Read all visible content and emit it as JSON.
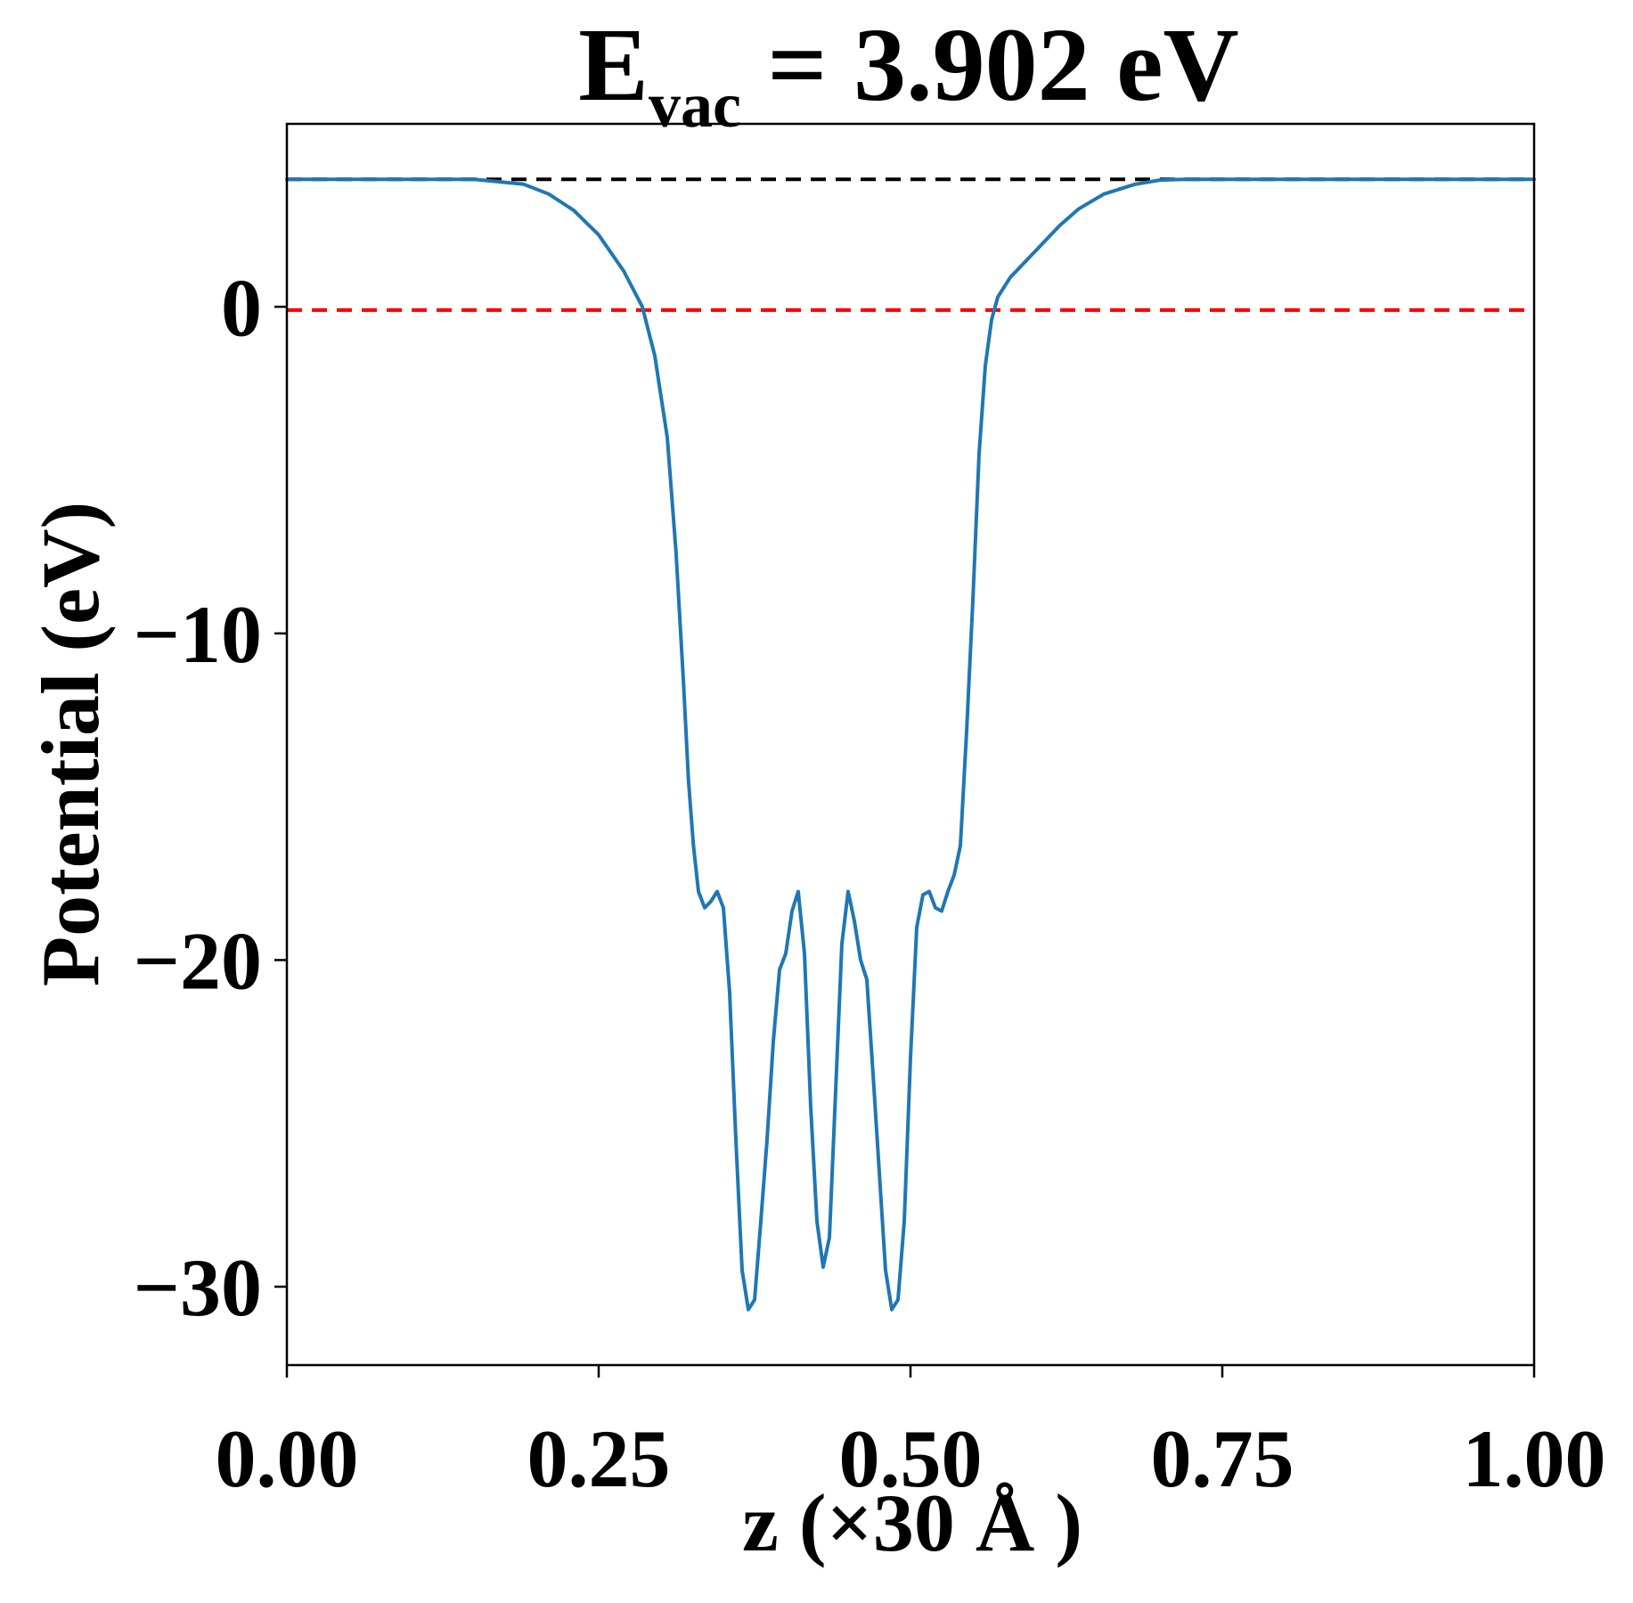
{
  "chart_data": {
    "type": "line",
    "title": {
      "main": "E",
      "subscript": "vac",
      "rest": " = 3.902 eV"
    },
    "xlabel": "z (×30 Å )",
    "ylabel": "Potential (eV)",
    "xlim": [
      0.0,
      1.0
    ],
    "ylim": [
      -32.4,
      5.6
    ],
    "x_ticks": [
      0.0,
      0.25,
      0.5,
      0.75,
      1.0
    ],
    "x_tick_labels": [
      "0.00",
      "0.25",
      "0.50",
      "0.75",
      "1.00"
    ],
    "y_ticks": [
      0,
      -10,
      -20,
      -30
    ],
    "y_tick_labels": [
      "0",
      "−10",
      "−20",
      "−30"
    ],
    "grid": false,
    "colors": {
      "potential_line": "#1f77b4",
      "vacuum_level_line": "#000000",
      "fermi_level_line": "#ff0000"
    },
    "reference_lines": [
      {
        "y": 3.902,
        "x_range": [
          0.0,
          1.0
        ],
        "style": "dashed",
        "color": "#000000"
      },
      {
        "y": -0.1,
        "x_range": [
          0.0,
          1.0
        ],
        "style": "dashed",
        "color": "#ff0000"
      }
    ],
    "series": [
      {
        "x": [
          0.0,
          0.05,
          0.1,
          0.15,
          0.19,
          0.21,
          0.23,
          0.25,
          0.27,
          0.285,
          0.295,
          0.305,
          0.312,
          0.318,
          0.322,
          0.326,
          0.33,
          0.335,
          0.34,
          0.345,
          0.35,
          0.355,
          0.36,
          0.365,
          0.37,
          0.375,
          0.38,
          0.385,
          0.39,
          0.395,
          0.4,
          0.405,
          0.41,
          0.415,
          0.42,
          0.425,
          0.43,
          0.435,
          0.44,
          0.445,
          0.45,
          0.455,
          0.46,
          0.465,
          0.47,
          0.475,
          0.48,
          0.485,
          0.49,
          0.495,
          0.5,
          0.505,
          0.51,
          0.515,
          0.52,
          0.525,
          0.53,
          0.535,
          0.54,
          0.545,
          0.55,
          0.555,
          0.56,
          0.565,
          0.57,
          0.575,
          0.58,
          0.585,
          0.59,
          0.595,
          0.6,
          0.605,
          0.61,
          0.62,
          0.635,
          0.655,
          0.68,
          0.7,
          0.72,
          0.75,
          0.8,
          0.85,
          0.9,
          0.95,
          1.0
        ],
        "y": [
          3.9,
          3.9,
          3.9,
          3.9,
          3.75,
          3.45,
          2.95,
          2.2,
          1.1,
          0.0,
          -1.5,
          -4.0,
          -7.5,
          -11.5,
          -14.5,
          -16.5,
          -17.9,
          -18.4,
          -18.2,
          -17.9,
          -18.4,
          -21.0,
          -25.5,
          -29.5,
          -30.7,
          -30.4,
          -28.0,
          -25.5,
          -22.5,
          -20.3,
          -19.8,
          -18.5,
          -17.9,
          -19.8,
          -24.5,
          -28.0,
          -29.4,
          -28.5,
          -24.0,
          -19.5,
          -17.9,
          -18.8,
          -20.0,
          -20.6,
          -23.5,
          -26.5,
          -29.5,
          -30.7,
          -30.4,
          -28.0,
          -23.0,
          -19.0,
          -18.0,
          -17.9,
          -18.4,
          -18.5,
          -17.9,
          -17.4,
          -16.5,
          -13.0,
          -9.0,
          -4.5,
          -1.8,
          -0.4,
          0.3,
          0.6,
          0.9,
          1.1,
          1.3,
          1.5,
          1.7,
          1.9,
          2.1,
          2.5,
          3.0,
          3.45,
          3.75,
          3.88,
          3.9,
          3.9,
          3.9,
          3.9,
          3.9,
          3.9,
          3.9
        ]
      }
    ]
  }
}
